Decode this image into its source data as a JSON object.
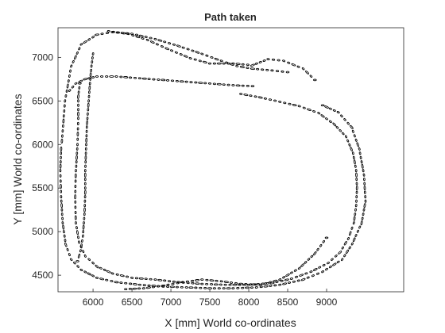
{
  "chart_data": {
    "type": "scatter",
    "title": "Path taken",
    "xlabel": "X [mm] World co-ordinates",
    "ylabel": "Y [mm] World co-ordinates",
    "xlim": [
      5550,
      9990
    ],
    "ylim": [
      4310,
      7340
    ],
    "xticks": [
      6000,
      6500,
      7000,
      7500,
      8000,
      8500,
      9000
    ],
    "yticks": [
      4500,
      5000,
      5500,
      6000,
      6500,
      7000
    ],
    "grid": false,
    "legend": "none",
    "marker": "ellipse",
    "marker_color": "#000000",
    "series": [
      {
        "points": [
          [
            5600,
            6040
          ],
          [
            5640,
            6500
          ],
          [
            5720,
            6900
          ],
          [
            5850,
            7150
          ],
          [
            6050,
            7260
          ],
          [
            6250,
            7290
          ],
          [
            6500,
            7270
          ],
          [
            6800,
            7210
          ],
          [
            7100,
            7130
          ],
          [
            7400,
            7040
          ],
          [
            7650,
            6960
          ],
          [
            7850,
            6900
          ],
          [
            8050,
            6870
          ],
          [
            8300,
            6850
          ],
          [
            8500,
            6830
          ]
        ]
      },
      {
        "points": [
          [
            6200,
            7300
          ],
          [
            6450,
            7270
          ],
          [
            6700,
            7200
          ],
          [
            6950,
            7100
          ],
          [
            7250,
            6990
          ],
          [
            7500,
            6930
          ],
          [
            7800,
            6930
          ],
          [
            8050,
            6910
          ],
          [
            8250,
            6980
          ],
          [
            8450,
            6960
          ],
          [
            8700,
            6870
          ],
          [
            8850,
            6740
          ]
        ]
      },
      {
        "points": [
          [
            5700,
            6620
          ],
          [
            5780,
            6700
          ],
          [
            5900,
            6750
          ],
          [
            6050,
            6780
          ],
          [
            6300,
            6780
          ],
          [
            6600,
            6760
          ],
          [
            6900,
            6740
          ],
          [
            7200,
            6720
          ],
          [
            7500,
            6700
          ],
          [
            7800,
            6680
          ],
          [
            8050,
            6670
          ]
        ]
      },
      {
        "points": [
          [
            7900,
            6580
          ],
          [
            8150,
            6540
          ],
          [
            8400,
            6490
          ],
          [
            8650,
            6440
          ],
          [
            8900,
            6360
          ],
          [
            9100,
            6230
          ],
          [
            9250,
            6090
          ],
          [
            9340,
            5900
          ],
          [
            9380,
            5700
          ],
          [
            9390,
            5500
          ],
          [
            9380,
            5300
          ],
          [
            9350,
            5100
          ],
          [
            9280,
            4920
          ],
          [
            9170,
            4760
          ],
          [
            9020,
            4640
          ],
          [
            8800,
            4540
          ],
          [
            8550,
            4460
          ],
          [
            8300,
            4410
          ],
          [
            8000,
            4390
          ],
          [
            7700,
            4390
          ],
          [
            7400,
            4400
          ],
          [
            7100,
            4420
          ],
          [
            6800,
            4450
          ],
          [
            6500,
            4470
          ],
          [
            6250,
            4520
          ],
          [
            6050,
            4600
          ],
          [
            5900,
            4720
          ],
          [
            5820,
            4880
          ],
          [
            5780,
            5100
          ],
          [
            5770,
            5400
          ],
          [
            5780,
            5700
          ],
          [
            5800,
            6000
          ],
          [
            5810,
            6300
          ],
          [
            5810,
            6550
          ],
          [
            5830,
            6700
          ]
        ]
      },
      {
        "points": [
          [
            5590,
            5950
          ],
          [
            5580,
            5700
          ],
          [
            5590,
            5400
          ],
          [
            5610,
            5100
          ],
          [
            5650,
            4850
          ],
          [
            5720,
            4680
          ],
          [
            5850,
            4560
          ],
          [
            6050,
            4470
          ],
          [
            6300,
            4420
          ],
          [
            6600,
            4390
          ],
          [
            6900,
            4370
          ],
          [
            7200,
            4360
          ],
          [
            7500,
            4350
          ],
          [
            7800,
            4350
          ],
          [
            8100,
            4360
          ],
          [
            8400,
            4390
          ],
          [
            8700,
            4450
          ],
          [
            8950,
            4540
          ],
          [
            9200,
            4680
          ],
          [
            9330,
            4860
          ],
          [
            9450,
            5100
          ],
          [
            9500,
            5350
          ],
          [
            9480,
            5650
          ],
          [
            9420,
            5950
          ],
          [
            9320,
            6200
          ],
          [
            9150,
            6370
          ],
          [
            8950,
            6450
          ]
        ]
      },
      {
        "points": [
          [
            6000,
            7040
          ],
          [
            5980,
            6900
          ],
          [
            5960,
            6700
          ],
          [
            5940,
            6450
          ],
          [
            5920,
            6200
          ],
          [
            5910,
            5950
          ],
          [
            5900,
            5700
          ],
          [
            5900,
            5450
          ],
          [
            5890,
            5200
          ],
          [
            5870,
            4950
          ],
          [
            5840,
            4780
          ],
          [
            5800,
            4660
          ]
        ]
      },
      {
        "points": [
          [
            6420,
            4340
          ],
          [
            6650,
            4350
          ],
          [
            6900,
            4380
          ],
          [
            7150,
            4420
          ],
          [
            7400,
            4450
          ],
          [
            7650,
            4430
          ],
          [
            7900,
            4400
          ],
          [
            8150,
            4390
          ],
          [
            8400,
            4450
          ],
          [
            8650,
            4580
          ],
          [
            8850,
            4750
          ],
          [
            9000,
            4930
          ]
        ]
      }
    ]
  }
}
